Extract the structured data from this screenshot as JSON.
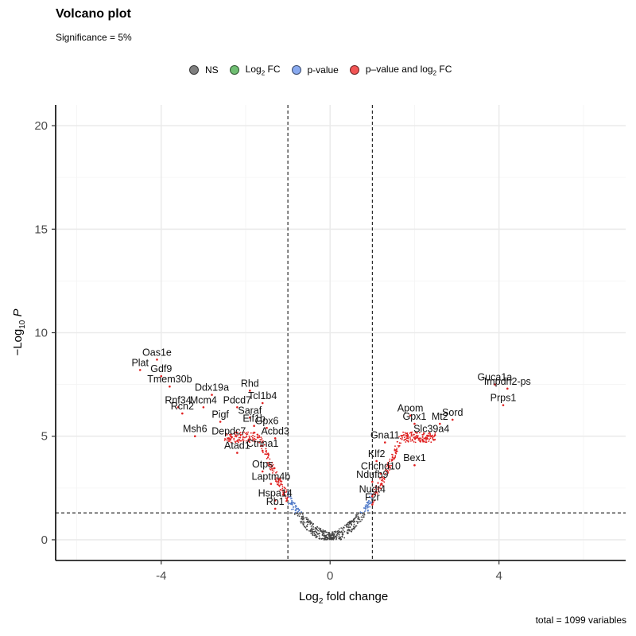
{
  "chart_data": {
    "type": "scatter",
    "title": "Volcano plot",
    "subtitle": "Significance = 5%",
    "xlabel": "fold change",
    "ylabel": "P",
    "caption": "total = 1099 variables",
    "xlim": [
      -6.5,
      7
    ],
    "ylim": [
      -1,
      21
    ],
    "xticks": [
      -4,
      0,
      4
    ],
    "yticks": [
      0,
      5,
      10,
      15,
      20
    ],
    "x_tick_labels": [
      "-4",
      "0",
      "4"
    ],
    "y_tick_labels": [
      "0",
      "5",
      "10",
      "15",
      "20"
    ],
    "thresholds": {
      "log2fc": [
        -1,
        1
      ],
      "neg_log10_p": 1.3
    },
    "legend": {
      "position": "top",
      "items": [
        {
          "key": "NS",
          "label": "NS",
          "color": "#7f7f7f"
        },
        {
          "key": "FC",
          "label": "FC",
          "color": "#6fbe72"
        },
        {
          "key": "P",
          "label": "p-value",
          "color": "#88a9ef"
        },
        {
          "key": "PFC",
          "label": "p–value and log",
          "label_suffix": " FC",
          "color": "#f25454"
        }
      ]
    },
    "colors": {
      "NS": "#444444",
      "P": "#4f79c8",
      "PFC": "#e02020"
    },
    "labeled_points": [
      {
        "label": "Oas1e",
        "x": -4.1,
        "y": 8.7
      },
      {
        "label": "Plat",
        "x": -4.5,
        "y": 8.2
      },
      {
        "label": "Gdf9",
        "x": -4.0,
        "y": 7.9
      },
      {
        "label": "Tmem30b",
        "x": -3.8,
        "y": 7.4
      },
      {
        "label": "Rhd",
        "x": -1.9,
        "y": 7.2
      },
      {
        "label": "Ddx19a",
        "x": -2.8,
        "y": 7.0
      },
      {
        "label": "Tcl1b4",
        "x": -1.6,
        "y": 6.6
      },
      {
        "label": "Rnf34",
        "x": -3.6,
        "y": 6.4
      },
      {
        "label": "Mcm4",
        "x": -3.0,
        "y": 6.4
      },
      {
        "label": "Pdcd7",
        "x": -2.2,
        "y": 6.4
      },
      {
        "label": "Rcn2",
        "x": -3.5,
        "y": 6.1
      },
      {
        "label": "Saraf",
        "x": -1.9,
        "y": 5.9
      },
      {
        "label": "Pigf",
        "x": -2.6,
        "y": 5.7
      },
      {
        "label": "Eif1b",
        "x": -1.8,
        "y": 5.5
      },
      {
        "label": "Gpx6",
        "x": -1.5,
        "y": 5.4
      },
      {
        "label": "Msh6",
        "x": -3.2,
        "y": 5.0
      },
      {
        "label": "Depdc7",
        "x": -2.4,
        "y": 4.9
      },
      {
        "label": "Acbd3",
        "x": -1.3,
        "y": 4.9
      },
      {
        "label": "Ctnna1",
        "x": -1.6,
        "y": 4.3
      },
      {
        "label": "Atad1",
        "x": -2.2,
        "y": 4.2
      },
      {
        "label": "Otps",
        "x": -1.6,
        "y": 3.3
      },
      {
        "label": "Laptm4b",
        "x": -1.4,
        "y": 2.7
      },
      {
        "label": "Hspa14",
        "x": -1.3,
        "y": 1.9
      },
      {
        "label": "Rb1",
        "x": -1.3,
        "y": 1.5
      },
      {
        "label": "Guca1a",
        "x": 3.9,
        "y": 7.5
      },
      {
        "label": "Impdh2-ps",
        "x": 4.2,
        "y": 7.3
      },
      {
        "label": "Prps1",
        "x": 4.1,
        "y": 6.5
      },
      {
        "label": "Apom",
        "x": 1.9,
        "y": 6.0
      },
      {
        "label": "Sord",
        "x": 2.9,
        "y": 5.8
      },
      {
        "label": "Gpx1",
        "x": 2.0,
        "y": 5.6
      },
      {
        "label": "Mt2",
        "x": 2.6,
        "y": 5.6
      },
      {
        "label": "Slc39a4",
        "x": 2.4,
        "y": 5.0
      },
      {
        "label": "Gna11",
        "x": 1.3,
        "y": 4.7
      },
      {
        "label": "Klf2",
        "x": 1.1,
        "y": 3.8
      },
      {
        "label": "Bex1",
        "x": 2.0,
        "y": 3.6
      },
      {
        "label": "Chchd10",
        "x": 1.2,
        "y": 3.2
      },
      {
        "label": "Ndufb9",
        "x": 1.0,
        "y": 2.8
      },
      {
        "label": "Nudt4",
        "x": 1.0,
        "y": 2.1
      },
      {
        "label": "F2r",
        "x": 1.0,
        "y": 1.7
      }
    ]
  }
}
